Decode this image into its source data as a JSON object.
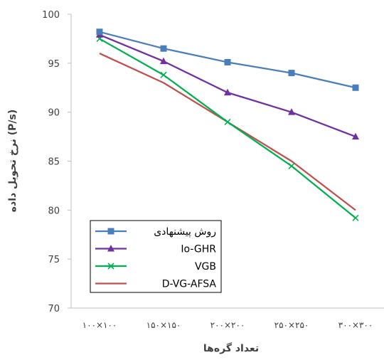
{
  "chart_data": {
    "type": "line",
    "title": "",
    "xlabel": "تعداد گره‌ها",
    "ylabel": "نرخ تحویل داده (P/s)",
    "categories": [
      "۱۰۰×۱۰۰",
      "۱۵۰×۱۵۰",
      "۲۰۰×۲۰۰",
      "۲۵۰×۲۵۰",
      "۳۰۰×۳۰۰"
    ],
    "ylim": [
      70,
      100
    ],
    "yticks": [
      70,
      75,
      80,
      85,
      90,
      95,
      100
    ],
    "grid": false,
    "legend_position": "bottom-left",
    "series": [
      {
        "name": "روش پیشنهادی",
        "values": [
          98.2,
          96.5,
          95.1,
          94.0,
          92.5
        ],
        "color": "#4a7ebb",
        "marker": "square"
      },
      {
        "name": "Io-GHR",
        "values": [
          97.9,
          95.2,
          92.0,
          90.0,
          87.5
        ],
        "color": "#7030a0",
        "marker": "triangle"
      },
      {
        "name": "VGB",
        "values": [
          97.5,
          93.8,
          89.0,
          84.5,
          79.2
        ],
        "color": "#00b050",
        "marker": "x"
      },
      {
        "name": "D-VG-AFSA",
        "values": [
          96.0,
          93.0,
          89.0,
          85.0,
          80.0
        ],
        "color": "#c0504d",
        "marker": "none"
      }
    ]
  }
}
